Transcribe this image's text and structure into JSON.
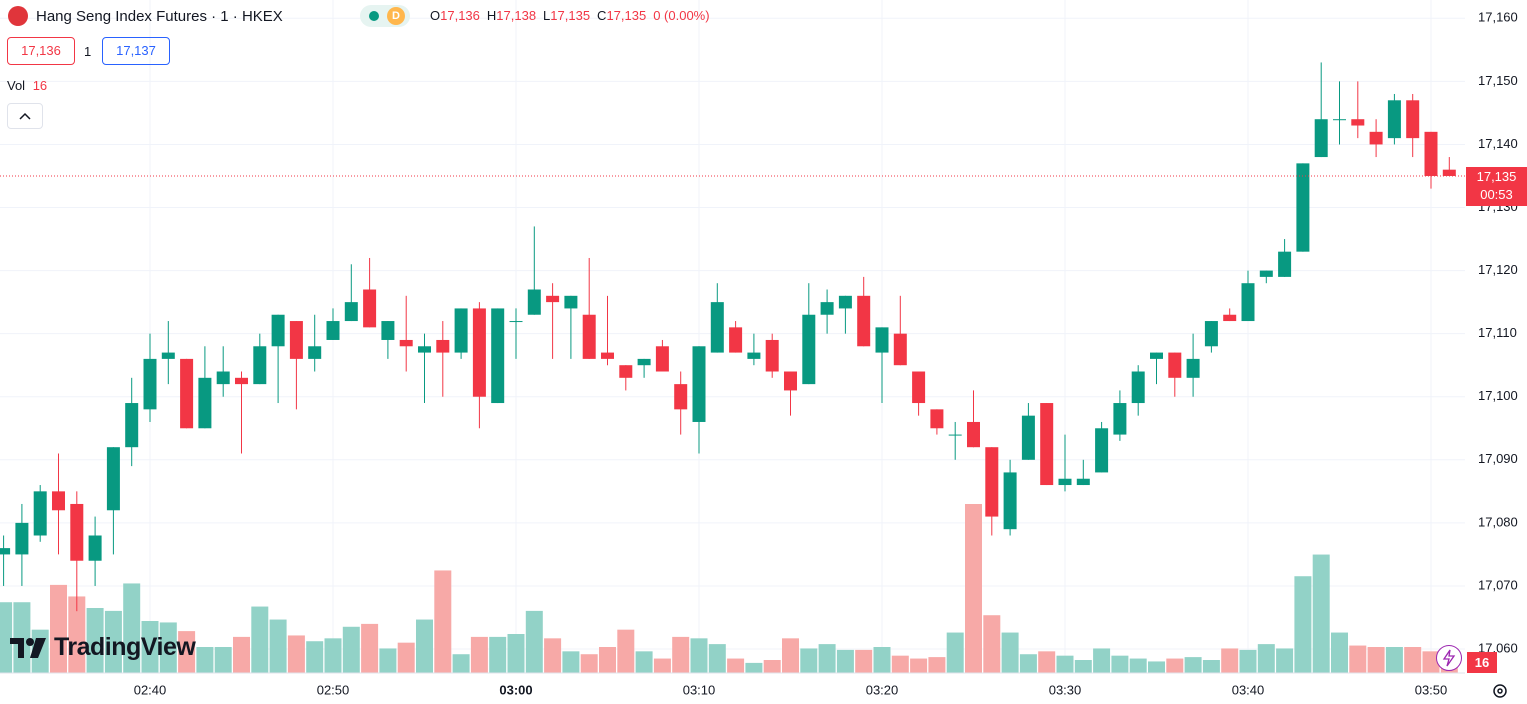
{
  "chart_data": {
    "type": "candlestick",
    "title": "Hang Seng Index Futures · 1 · HKEX",
    "session_badge": "D",
    "legend": [
      {
        "label": "O",
        "value": "17,136"
      },
      {
        "label": "H",
        "value": "17,138"
      },
      {
        "label": "L",
        "value": "17,135"
      },
      {
        "label": "C",
        "value": "17,135"
      }
    ],
    "change": "0 (0.00%)",
    "bid": "17,136",
    "spread": "1",
    "ask": "17,137",
    "volume_label": "Vol",
    "volume_value": "16",
    "last_price_label": "17,135",
    "countdown": "00:53",
    "volume_badge": "16",
    "watermark": "TradingView",
    "categories": [
      null,
      null,
      null,
      null,
      null,
      null,
      null,
      null,
      "02:40",
      null,
      null,
      null,
      null,
      null,
      null,
      null,
      null,
      null,
      "02:50",
      null,
      null,
      null,
      null,
      null,
      null,
      null,
      null,
      null,
      "03:00",
      null,
      null,
      null,
      null,
      null,
      null,
      null,
      null,
      null,
      "03:10",
      null,
      null,
      null,
      null,
      null,
      null,
      null,
      null,
      null,
      "03:20",
      null,
      null,
      null,
      null,
      null,
      null,
      null,
      null,
      null,
      "03:30",
      null,
      null,
      null,
      null,
      null,
      null,
      null,
      null,
      null,
      "03:40",
      null,
      null,
      null,
      null,
      null,
      null,
      null,
      null,
      null,
      "03:50",
      null
    ],
    "open": [
      17075,
      17075,
      17078,
      17085,
      17083,
      17074,
      17082,
      17092,
      17098,
      17106,
      17106,
      17095,
      17102,
      17103,
      17102,
      17108,
      17112,
      17106,
      17109,
      17112,
      17117,
      17109,
      17109,
      17107,
      17109,
      17107,
      17114,
      17099,
      17112,
      17113,
      17116,
      17114,
      17113,
      17107,
      17105,
      17105,
      17108,
      17102,
      17096,
      17107,
      17111,
      17106,
      17109,
      17104,
      17102,
      17113,
      17114,
      17116,
      17107,
      17110,
      17104,
      17098,
      17094,
      17096,
      17092,
      17079,
      17090,
      17099,
      17086,
      17086,
      17088,
      17094,
      17099,
      17106,
      17107,
      17103,
      17108,
      17113,
      17112,
      17119,
      17119,
      17123,
      17138,
      17144,
      17144,
      17142,
      17141,
      17147,
      17142,
      17136
    ],
    "high": [
      17078,
      17083,
      17086,
      17091,
      17085,
      17081,
      17092,
      17103,
      17110,
      17112,
      17106,
      17108,
      17108,
      17104,
      17110,
      17113,
      17112,
      17113,
      17114,
      17121,
      17122,
      17112,
      17116,
      17110,
      17112,
      17114,
      17115,
      17114,
      17114,
      17127,
      17118,
      17116,
      17122,
      17116,
      17105,
      17106,
      17109,
      17104,
      17108,
      17118,
      17112,
      17110,
      17110,
      17104,
      17118,
      17117,
      17116,
      17119,
      17111,
      17116,
      17104,
      17098,
      17096,
      17101,
      17092,
      17090,
      17099,
      17099,
      17094,
      17090,
      17096,
      17101,
      17105,
      17107,
      17107,
      17110,
      17112,
      17114,
      17120,
      17120,
      17125,
      17137,
      17153,
      17150,
      17150,
      17144,
      17148,
      17148,
      17142,
      17138
    ],
    "low": [
      17070,
      17070,
      17077,
      17075,
      17066,
      17070,
      17075,
      17089,
      17096,
      17102,
      17095,
      17095,
      17100,
      17091,
      17102,
      17099,
      17098,
      17104,
      17109,
      17112,
      17111,
      17106,
      17104,
      17099,
      17100,
      17106,
      17095,
      17099,
      17106,
      17113,
      17106,
      17106,
      17106,
      17105,
      17101,
      17103,
      17104,
      17094,
      17091,
      17107,
      17107,
      17105,
      17103,
      17097,
      17102,
      17110,
      17110,
      17108,
      17099,
      17105,
      17097,
      17094,
      17090,
      17092,
      17078,
      17078,
      17090,
      17086,
      17085,
      17086,
      17088,
      17093,
      17097,
      17102,
      17100,
      17100,
      17107,
      17112,
      17112,
      17118,
      17119,
      17123,
      17138,
      17140,
      17141,
      17138,
      17140,
      17138,
      17133,
      17135
    ],
    "close": [
      17076,
      17080,
      17085,
      17082,
      17074,
      17078,
      17092,
      17099,
      17106,
      17107,
      17095,
      17103,
      17104,
      17102,
      17108,
      17113,
      17106,
      17108,
      17112,
      17115,
      17111,
      17112,
      17108,
      17108,
      17107,
      17114,
      17100,
      17114,
      17112,
      17117,
      17115,
      17116,
      17106,
      17106,
      17103,
      17106,
      17104,
      17098,
      17108,
      17115,
      17107,
      17107,
      17104,
      17101,
      17113,
      17115,
      17116,
      17108,
      17111,
      17105,
      17099,
      17095,
      17094,
      17092,
      17081,
      17088,
      17097,
      17086,
      17087,
      17087,
      17095,
      17099,
      17104,
      17107,
      17103,
      17106,
      17112,
      17112,
      17118,
      17120,
      17123,
      17137,
      17144,
      17144,
      17143,
      17140,
      17147,
      17141,
      17135,
      17135
    ],
    "volume": [
      49,
      49,
      30,
      61,
      53,
      45,
      43,
      62,
      36,
      35,
      29,
      18,
      18,
      25,
      46,
      37,
      26,
      22,
      24,
      32,
      34,
      17,
      21,
      37,
      71,
      13,
      25,
      25,
      27,
      43,
      24,
      15,
      13,
      18,
      30,
      15,
      10,
      25,
      24,
      20,
      10,
      7,
      9,
      24,
      17,
      20,
      16,
      16,
      18,
      12,
      10,
      11,
      28,
      117,
      40,
      28,
      13,
      15,
      12,
      9,
      17,
      12,
      10,
      8,
      10,
      11,
      9,
      17,
      16,
      20,
      17,
      67,
      82,
      28,
      19,
      18,
      18,
      18,
      15,
      16
    ],
    "ylim": [
      17056.2,
      17162.9
    ],
    "yticks": [
      {
        "value": 17060,
        "label": "17,060"
      },
      {
        "value": 17070,
        "label": "17,070"
      },
      {
        "value": 17080,
        "label": "17,080"
      },
      {
        "value": 17090,
        "label": "17,090"
      },
      {
        "value": 17100,
        "label": "17,100"
      },
      {
        "value": 17110,
        "label": "17,110"
      },
      {
        "value": 17120,
        "label": "17,120"
      },
      {
        "value": 17130,
        "label": "17,130"
      },
      {
        "value": 17140,
        "label": "17,140"
      },
      {
        "value": 17150,
        "label": "17,150"
      },
      {
        "value": 17160,
        "label": "17,160"
      }
    ],
    "grid": true,
    "up_color": "#089981",
    "down_color": "#f23645",
    "vol_up_color": "#92d2c7",
    "vol_down_color": "#f7a9a7"
  }
}
